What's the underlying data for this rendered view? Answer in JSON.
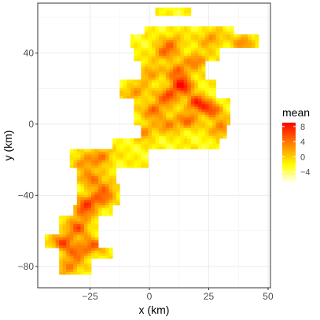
{
  "chart_data": {
    "type": "heatmap",
    "xlabel": "x (km)",
    "ylabel": "y (km)",
    "xlim": [
      -47,
      51
    ],
    "ylim": [
      -92,
      68
    ],
    "x_ticks": [
      -25,
      0,
      25,
      50
    ],
    "x_tick_labels": [
      "-25",
      "0",
      "25",
      "50"
    ],
    "y_ticks": [
      -80,
      -40,
      0,
      40
    ],
    "y_tick_labels": [
      "-80",
      "-40",
      "0",
      "40"
    ],
    "grid": true,
    "legend": {
      "title": "mean",
      "placement": "right",
      "range": [
        -7,
        9
      ],
      "ticks": [
        8,
        4,
        0,
        -4
      ],
      "tick_labels": [
        "8",
        "4",
        "0",
        "-4"
      ],
      "colors": [
        "#ffffff",
        "#ffff00",
        "#ff8000",
        "#ff0000"
      ]
    },
    "regions": [
      {
        "x": [
          2,
          18
        ],
        "y": [
          61,
          65
        ]
      },
      {
        "x": [
          -2,
          36
        ],
        "y": [
          50,
          55
        ]
      },
      {
        "x": [
          -8,
          46
        ],
        "y": [
          43,
          50
        ]
      },
      {
        "x": [
          -6,
          30
        ],
        "y": [
          35,
          43
        ]
      },
      {
        "x": [
          -4,
          24
        ],
        "y": [
          25,
          35
        ]
      },
      {
        "x": [
          -12,
          28
        ],
        "y": [
          14,
          25
        ]
      },
      {
        "x": [
          -6,
          34
        ],
        "y": [
          0,
          14
        ]
      },
      {
        "x": [
          -4,
          32
        ],
        "y": [
          -8,
          0
        ]
      },
      {
        "x": [
          -16,
          30
        ],
        "y": [
          -14,
          -8
        ]
      },
      {
        "x": [
          -33,
          -1
        ],
        "y": [
          -24,
          -14
        ]
      },
      {
        "x": [
          -31,
          -14
        ],
        "y": [
          -34,
          -24
        ]
      },
      {
        "x": [
          -30,
          -12
        ],
        "y": [
          -46,
          -34
        ]
      },
      {
        "x": [
          -32,
          -16
        ],
        "y": [
          -52,
          -46
        ]
      },
      {
        "x": [
          -38,
          -22
        ],
        "y": [
          -62,
          -52
        ]
      },
      {
        "x": [
          -44,
          -22
        ],
        "y": [
          -70,
          -62
        ]
      },
      {
        "x": [
          -38,
          -16
        ],
        "y": [
          -76,
          -70
        ]
      },
      {
        "x": [
          -38,
          -24
        ],
        "y": [
          -84,
          -76
        ]
      }
    ],
    "hotspots": [
      {
        "x": 14,
        "y": 22,
        "v": 8
      },
      {
        "x": 20,
        "y": 12,
        "v": 7
      },
      {
        "x": 8,
        "y": 16,
        "v": 6
      },
      {
        "x": 26,
        "y": 8,
        "v": 5
      },
      {
        "x": 12,
        "y": 30,
        "v": 5
      },
      {
        "x": 2,
        "y": 8,
        "v": 5
      },
      {
        "x": 16,
        "y": 2,
        "v": 4
      },
      {
        "x": 30,
        "y": -2,
        "v": 4
      },
      {
        "x": 6,
        "y": 40,
        "v": 4
      },
      {
        "x": 20,
        "y": 36,
        "v": 4
      },
      {
        "x": 10,
        "y": 46,
        "v": 3
      },
      {
        "x": 26,
        "y": 48,
        "v": 3
      },
      {
        "x": 40,
        "y": 46,
        "v": 3
      },
      {
        "x": 0,
        "y": 28,
        "v": 3
      },
      {
        "x": -6,
        "y": 18,
        "v": 3
      },
      {
        "x": -2,
        "y": -4,
        "v": 3
      },
      {
        "x": -20,
        "y": -18,
        "v": 4
      },
      {
        "x": -28,
        "y": -22,
        "v": 3
      },
      {
        "x": -24,
        "y": -30,
        "v": 4
      },
      {
        "x": -18,
        "y": -36,
        "v": 3
      },
      {
        "x": -26,
        "y": -44,
        "v": 5
      },
      {
        "x": -20,
        "y": -42,
        "v": 3
      },
      {
        "x": -28,
        "y": -50,
        "v": 3
      },
      {
        "x": -30,
        "y": -58,
        "v": 5
      },
      {
        "x": -36,
        "y": -66,
        "v": 6
      },
      {
        "x": -30,
        "y": -72,
        "v": 4
      },
      {
        "x": -34,
        "y": -80,
        "v": 4
      },
      {
        "x": -24,
        "y": -68,
        "v": 4
      },
      {
        "x": 8,
        "y": 0,
        "v": 3
      }
    ]
  }
}
